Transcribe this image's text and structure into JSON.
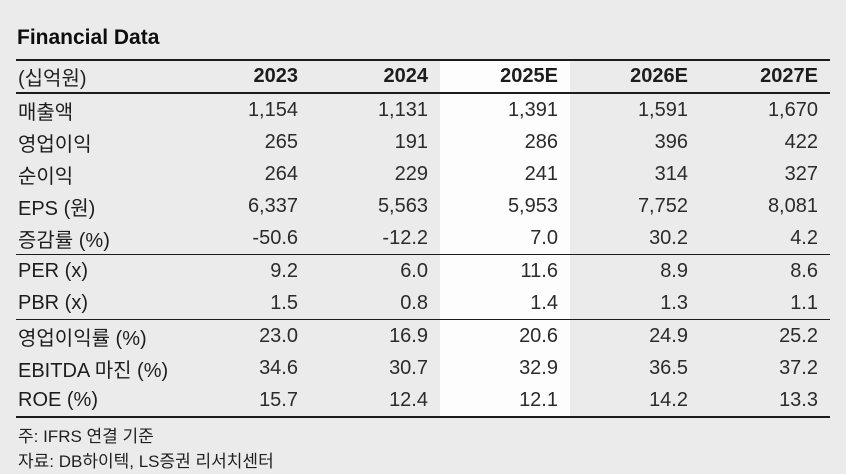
{
  "title": "Financial Data",
  "table": {
    "unit_header": "(십억원)",
    "columns": [
      "2023",
      "2024",
      "2025E",
      "2026E",
      "2027E"
    ],
    "highlighted_column": "2025E",
    "rows": [
      {
        "label": "매출액",
        "values": [
          "1,154",
          "1,131",
          "1,391",
          "1,591",
          "1,670"
        ]
      },
      {
        "label": "영업이익",
        "values": [
          "265",
          "191",
          "286",
          "396",
          "422"
        ]
      },
      {
        "label": "순이익",
        "values": [
          "264",
          "229",
          "241",
          "314",
          "327"
        ]
      },
      {
        "label": "EPS (원)",
        "values": [
          "6,337",
          "5,563",
          "5,953",
          "7,752",
          "8,081"
        ]
      },
      {
        "label": "증감률 (%)",
        "values": [
          "-50.6",
          "-12.2",
          "7.0",
          "30.2",
          "4.2"
        ]
      },
      {
        "label": "PER (x)",
        "values": [
          "9.2",
          "6.0",
          "11.6",
          "8.9",
          "8.6"
        ]
      },
      {
        "label": "PBR (x)",
        "values": [
          "1.5",
          "0.8",
          "1.4",
          "1.3",
          "1.1"
        ]
      },
      {
        "label": "영업이익률 (%)",
        "values": [
          "23.0",
          "16.9",
          "20.6",
          "24.9",
          "25.2"
        ]
      },
      {
        "label": "EBITDA 마진 (%)",
        "values": [
          "34.6",
          "30.7",
          "32.9",
          "36.5",
          "37.2"
        ]
      },
      {
        "label": "ROE (%)",
        "values": [
          "15.7",
          "12.4",
          "12.1",
          "14.2",
          "13.3"
        ]
      }
    ]
  },
  "notes": [
    "주: IFRS 연결 기준",
    "자료: DB하이텍, LS증권 리서치센터"
  ],
  "colors": {
    "page_background": "#ebebeb",
    "highlight_column_background": "#fdfdfd",
    "rule": "#1c1c1c",
    "text": "#2b2b2b"
  }
}
